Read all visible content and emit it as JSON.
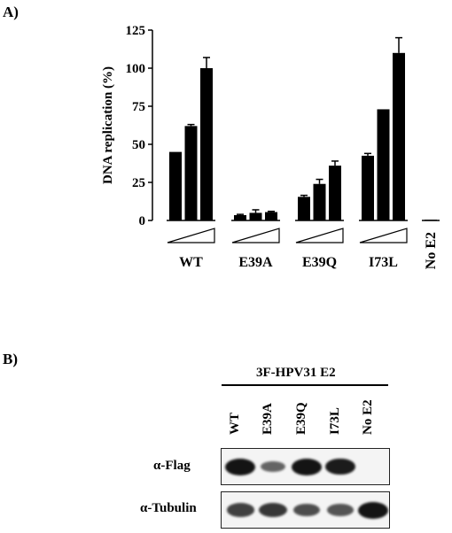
{
  "panel_a_label": "A)",
  "panel_b_label": "B)",
  "chart_data": {
    "type": "bar",
    "ylabel": "DNA replication (%)",
    "xlabel": "",
    "ylim": [
      0,
      125
    ],
    "yticks": [
      0,
      25,
      50,
      75,
      100,
      125
    ],
    "groups": [
      {
        "label": "WT",
        "values": [
          45,
          62,
          100
        ],
        "errors": [
          0,
          1,
          7
        ]
      },
      {
        "label": "E39A",
        "values": [
          3.5,
          5,
          5.5
        ],
        "errors": [
          0.5,
          2,
          0.5
        ]
      },
      {
        "label": "E39Q",
        "values": [
          15.5,
          24,
          36
        ],
        "errors": [
          1,
          3,
          3
        ]
      },
      {
        "label": "I73L",
        "values": [
          42.5,
          73,
          110
        ],
        "errors": [
          1.5,
          0,
          10
        ]
      },
      {
        "label": "No E2",
        "values": [
          0.5
        ],
        "errors": [
          0
        ]
      }
    ],
    "dose_triangle": true,
    "grid": false,
    "bar_color": "#000000"
  },
  "western_blot": {
    "title": "3F-HPV31 E2",
    "lanes": [
      "WT",
      "E39A",
      "E39Q",
      "I73L",
      "No E2"
    ],
    "rows": [
      {
        "label": "α-Flag",
        "band_intensity": [
          1.0,
          0.45,
          1.0,
          0.95,
          0.0
        ]
      },
      {
        "label": "α-Tubulin",
        "band_intensity": [
          0.7,
          0.75,
          0.6,
          0.55,
          1.0
        ]
      }
    ]
  }
}
